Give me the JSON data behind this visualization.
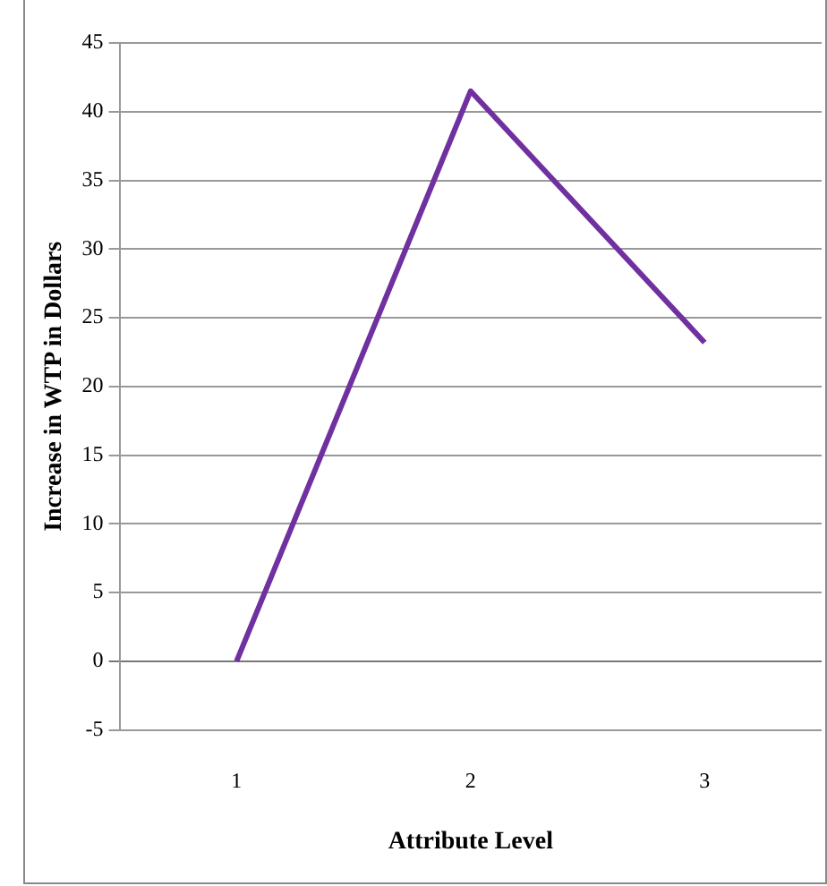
{
  "chart_data": {
    "type": "line",
    "xlabel": "Attribute Level",
    "ylabel": "Increase in WTP in Dollars",
    "categories": [
      "1",
      "2",
      "3"
    ],
    "series": [
      {
        "color": "#7030a0",
        "values": [
          0,
          41.5,
          23.2
        ]
      }
    ],
    "ylim": [
      -5,
      45
    ],
    "yticks": [
      -5,
      0,
      5,
      10,
      15,
      20,
      25,
      30,
      35,
      40,
      45
    ],
    "grid": "y",
    "legend": false,
    "marker": "none",
    "line_style": "solid"
  }
}
